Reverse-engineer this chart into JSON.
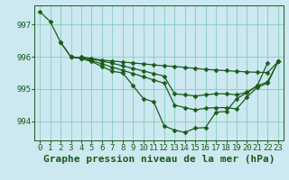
{
  "bg_color": "#cce8f0",
  "grid_color": "#88ccbb",
  "line_color": "#1a5c1a",
  "marker_color": "#1a5c1a",
  "title": "Graphe pression niveau de la mer (hPa)",
  "hours": [
    0,
    1,
    2,
    3,
    4,
    5,
    6,
    7,
    8,
    9,
    10,
    11,
    12,
    13,
    14,
    15,
    16,
    17,
    18,
    19,
    20,
    21,
    22,
    23
  ],
  "yticks": [
    994,
    995,
    996,
    997
  ],
  "ylim": [
    993.4,
    997.6
  ],
  "series1": [
    997.4,
    997.1,
    996.45,
    996.0,
    995.95,
    995.85,
    995.7,
    995.55,
    995.5,
    995.1,
    994.7,
    994.6,
    993.85,
    993.72,
    993.65,
    993.78,
    993.8,
    994.28,
    994.3,
    994.7,
    994.88,
    995.1,
    995.82,
    null
  ],
  "series2": [
    null,
    null,
    null,
    null,
    996.0,
    995.95,
    995.9,
    995.87,
    995.84,
    995.81,
    995.78,
    995.75,
    995.72,
    995.7,
    995.67,
    995.64,
    995.61,
    995.59,
    995.57,
    995.55,
    995.53,
    995.52,
    995.51,
    995.85
  ],
  "series3": [
    null,
    null,
    null,
    996.0,
    995.95,
    995.88,
    995.78,
    995.68,
    995.58,
    995.48,
    995.38,
    995.28,
    995.18,
    994.5,
    994.42,
    994.35,
    994.4,
    994.42,
    994.42,
    994.38,
    994.75,
    995.05,
    995.18,
    995.85
  ],
  "series4": [
    null,
    null,
    996.45,
    996.0,
    995.97,
    995.93,
    995.87,
    995.8,
    995.72,
    995.64,
    995.56,
    995.48,
    995.4,
    994.85,
    994.82,
    994.78,
    994.82,
    994.85,
    994.85,
    994.82,
    994.9,
    995.1,
    995.22,
    995.85
  ],
  "title_fontsize": 8,
  "tick_fontsize": 6.5,
  "linewidth": 0.9,
  "markersize": 2.5
}
